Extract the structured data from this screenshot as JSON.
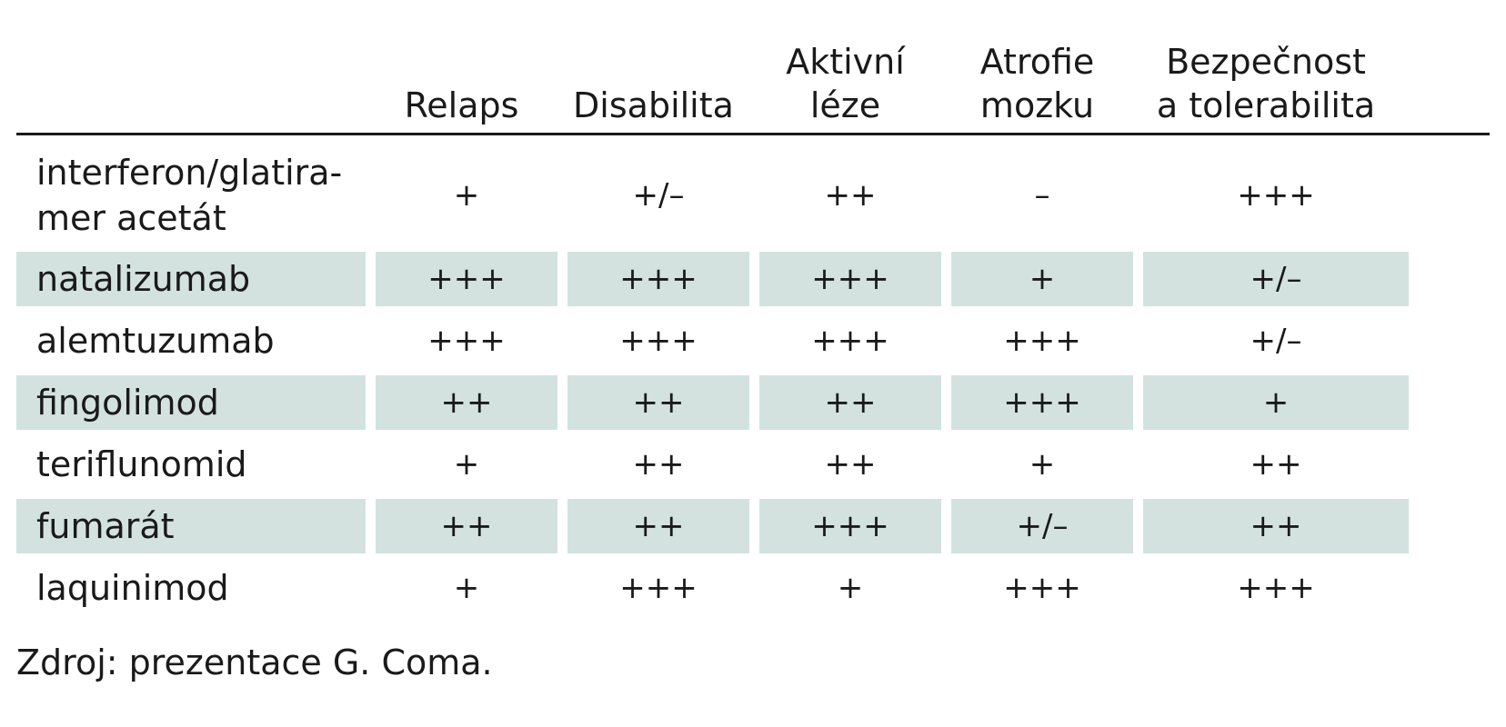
{
  "table": {
    "headers": [
      "",
      "Relaps",
      "Disabilita",
      "Aktivní\nléze",
      "Atrofie\nmozku",
      "Bezpečnost\na tolerabilita"
    ],
    "rows": [
      {
        "label": "interferon/glatira-\nmer acetát",
        "values": [
          "+",
          "+/–",
          "++",
          "–",
          "+++"
        ]
      },
      {
        "label": "natalizumab",
        "values": [
          "+++",
          "+++",
          "+++",
          "+",
          "+/–"
        ]
      },
      {
        "label": "alemtuzumab",
        "values": [
          "+++",
          "+++",
          "+++",
          "+++",
          "+/–"
        ]
      },
      {
        "label": "fingolimod",
        "values": [
          "++",
          "++",
          "++",
          "+++",
          "+"
        ]
      },
      {
        "label": "teriflunomid",
        "values": [
          "+",
          "++",
          "++",
          "+",
          "++"
        ]
      },
      {
        "label": "fumarát",
        "values": [
          "++",
          "++",
          "+++",
          "+/–",
          "++"
        ]
      },
      {
        "label": "laquinimod",
        "values": [
          "+",
          "+++",
          "+",
          "+++",
          "+++"
        ]
      }
    ]
  },
  "source": "Zdroj: prezentace G. Coma.",
  "colors": {
    "shaded_row": "#d3e2df",
    "text": "#1a1a1a"
  }
}
